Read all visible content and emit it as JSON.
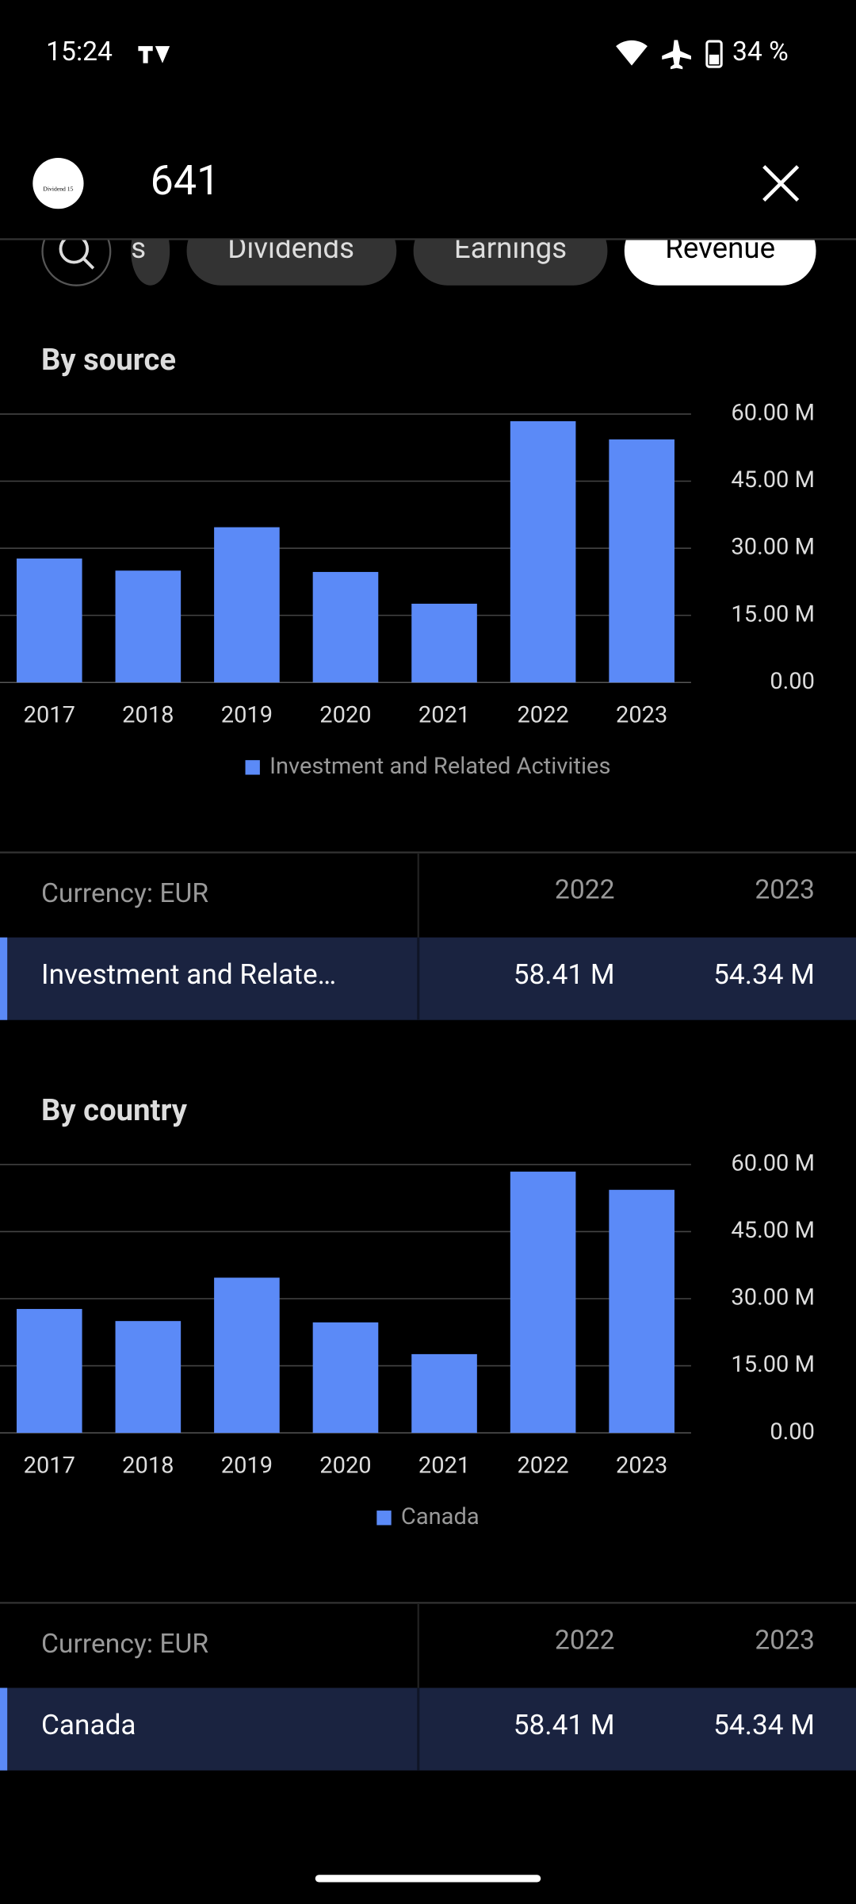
{
  "status_bar": {
    "time": "15:24",
    "battery": "34 %"
  },
  "header": {
    "title": "641",
    "logo_text": "Dividend 15"
  },
  "tabs": [
    "s",
    "Dividends",
    "Earnings",
    "Revenue"
  ],
  "chart_data": [
    {
      "type": "bar",
      "title": "By source",
      "categories": [
        "2017",
        "2018",
        "2019",
        "2020",
        "2021",
        "2022",
        "2023"
      ],
      "series": [
        {
          "name": "Investment and Related Activities",
          "color": "#5b8af7",
          "values": [
            27700000,
            25000000,
            34700000,
            24700000,
            17600000,
            58410000,
            54340000
          ]
        }
      ],
      "ylim": [
        0,
        60000000
      ],
      "yticks": [
        {
          "value": 0,
          "label": "0.00"
        },
        {
          "value": 15000000,
          "label": "15.00 M"
        },
        {
          "value": 30000000,
          "label": "30.00 M"
        },
        {
          "value": 45000000,
          "label": "45.00 M"
        },
        {
          "value": 60000000,
          "label": "60.00 M"
        }
      ],
      "grid": true,
      "legend": "bottom"
    },
    {
      "type": "bar",
      "title": "By country",
      "categories": [
        "2017",
        "2018",
        "2019",
        "2020",
        "2021",
        "2022",
        "2023"
      ],
      "series": [
        {
          "name": "Canada",
          "color": "#5b8af7",
          "values": [
            27700000,
            25000000,
            34700000,
            24700000,
            17600000,
            58410000,
            54340000
          ]
        }
      ],
      "ylim": [
        0,
        60000000
      ],
      "yticks": [
        {
          "value": 0,
          "label": "0.00"
        },
        {
          "value": 15000000,
          "label": "15.00 M"
        },
        {
          "value": 30000000,
          "label": "30.00 M"
        },
        {
          "value": 45000000,
          "label": "45.00 M"
        },
        {
          "value": 60000000,
          "label": "60.00 M"
        }
      ],
      "grid": true,
      "legend": "bottom"
    }
  ],
  "tables": [
    {
      "header": [
        "Currency: EUR",
        "2022",
        "2023"
      ],
      "rows": [
        [
          "Investment and Relate…",
          "58.41 M",
          "54.34 M"
        ]
      ]
    },
    {
      "header": [
        "Currency: EUR",
        "2022",
        "2023"
      ],
      "rows": [
        [
          "Canada",
          "58.41 M",
          "54.34 M"
        ]
      ]
    }
  ]
}
